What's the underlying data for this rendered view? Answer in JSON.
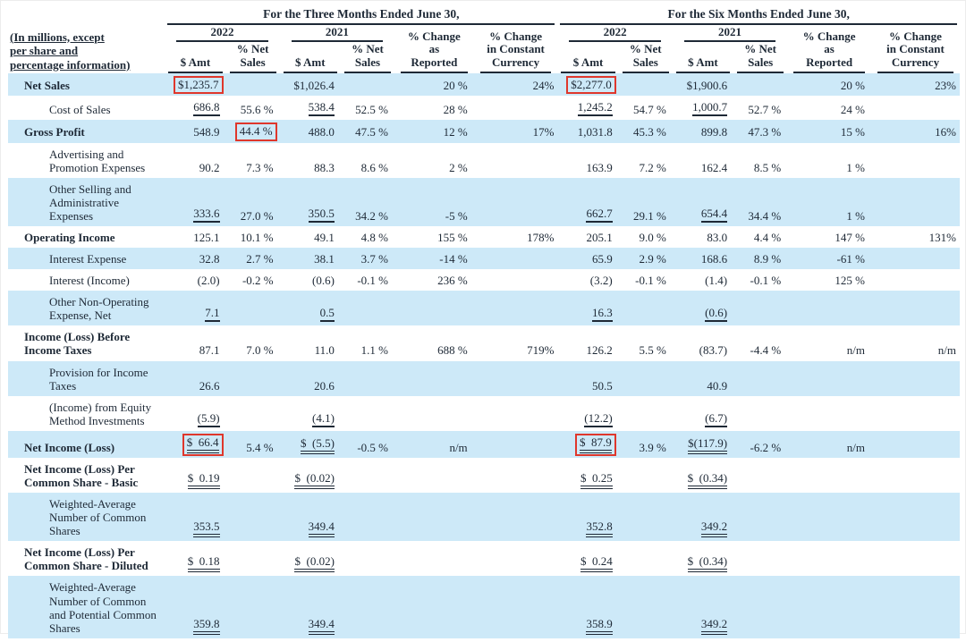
{
  "header": {
    "note": "(In millions, except\nper share and\npercentage information)",
    "three_months_title": "For the Three Months Ended June 30,",
    "six_months_title": "For the Six Months Ended June 30,",
    "year_2022": "2022",
    "year_2021": "2021",
    "col_amt": "$ Amt",
    "col_pct_net_sales": "% Net\nSales",
    "pct_change_reported": "% Change\nas\nReported",
    "pct_change_constant": "% Change\nin Constant\nCurrency"
  },
  "colors": {
    "row_highlight": "#cde9f8",
    "annotation_box": "#df372c",
    "text": "#1e2936"
  },
  "rows": [
    {
      "label": "Net Sales",
      "bold": true,
      "indent": false,
      "shade": true,
      "cells": [
        {
          "v": "$1,235.7",
          "box": true
        },
        "",
        "$1,026.4",
        "",
        "20 %",
        "24%",
        {
          "v": "$2,277.0",
          "box": true
        },
        "",
        "$1,900.6",
        "",
        "20 %",
        "23%"
      ]
    },
    {
      "label": "Cost of Sales",
      "bold": false,
      "indent": true,
      "shade": false,
      "cells": [
        {
          "v": "686.8",
          "u": "s"
        },
        "55.6 %",
        {
          "v": "538.4",
          "u": "s"
        },
        "52.5 %",
        "28 %",
        "",
        {
          "v": "1,245.2",
          "u": "s"
        },
        "54.7 %",
        {
          "v": "1,000.7",
          "u": "s"
        },
        "52.7 %",
        "24 %",
        ""
      ]
    },
    {
      "label": "Gross Profit",
      "bold": true,
      "indent": false,
      "shade": true,
      "cells": [
        "548.9",
        {
          "v": "44.4 %",
          "box": true
        },
        "488.0",
        "47.5 %",
        "12 %",
        "17%",
        "1,031.8",
        "45.3 %",
        "899.8",
        "47.3 %",
        "15 %",
        "16%"
      ]
    },
    {
      "label": "Advertising and Promotion Expenses",
      "bold": false,
      "indent": true,
      "shade": false,
      "cells": [
        "90.2",
        "7.3 %",
        "88.3",
        "8.6 %",
        "2 %",
        "",
        "163.9",
        "7.2 %",
        "162.4",
        "8.5 %",
        "1 %",
        ""
      ]
    },
    {
      "label": "Other Selling and Administrative Expenses",
      "bold": false,
      "indent": true,
      "shade": true,
      "cells": [
        {
          "v": "333.6",
          "u": "s"
        },
        "27.0 %",
        {
          "v": "350.5",
          "u": "s"
        },
        "34.2 %",
        "-5 %",
        "",
        {
          "v": "662.7",
          "u": "s"
        },
        "29.1 %",
        {
          "v": "654.4",
          "u": "s"
        },
        "34.4 %",
        "1 %",
        ""
      ]
    },
    {
      "label": "Operating Income",
      "bold": true,
      "indent": false,
      "shade": false,
      "cells": [
        "125.1",
        "10.1 %",
        "49.1",
        "4.8 %",
        "155 %",
        "178%",
        "205.1",
        "9.0 %",
        "83.0",
        "4.4 %",
        "147 %",
        "131%"
      ]
    },
    {
      "label": "Interest Expense",
      "bold": false,
      "indent": true,
      "shade": true,
      "cells": [
        "32.8",
        "2.7 %",
        "38.1",
        "3.7 %",
        "-14 %",
        "",
        "65.9",
        "2.9 %",
        "168.6",
        "8.9 %",
        "-61 %",
        ""
      ]
    },
    {
      "label": "Interest (Income)",
      "bold": false,
      "indent": true,
      "shade": false,
      "cells": [
        "(2.0)",
        "-0.2 %",
        "(0.6)",
        "-0.1 %",
        "236 %",
        "",
        "(3.2)",
        "-0.1 %",
        "(1.4)",
        "-0.1 %",
        "125 %",
        ""
      ]
    },
    {
      "label": "Other Non-Operating Expense, Net",
      "bold": false,
      "indent": true,
      "shade": true,
      "cells": [
        {
          "v": "7.1",
          "u": "s"
        },
        "",
        {
          "v": "0.5",
          "u": "s"
        },
        "",
        "",
        "",
        {
          "v": "16.3",
          "u": "s"
        },
        "",
        {
          "v": "(0.6)",
          "u": "s"
        },
        "",
        "",
        ""
      ]
    },
    {
      "label": "Income (Loss) Before Income Taxes",
      "bold": true,
      "indent": false,
      "shade": false,
      "cells": [
        "87.1",
        "7.0 %",
        "11.0",
        "1.1 %",
        "688 %",
        "719%",
        "126.2",
        "5.5 %",
        "(83.7)",
        "-4.4 %",
        "n/m",
        "n/m"
      ]
    },
    {
      "label": "Provision for Income Taxes",
      "bold": false,
      "indent": true,
      "shade": true,
      "cells": [
        "26.6",
        "",
        "20.6",
        "",
        "",
        "",
        "50.5",
        "",
        "40.9",
        "",
        "",
        ""
      ]
    },
    {
      "label": "(Income) from Equity Method Investments",
      "bold": false,
      "indent": true,
      "shade": false,
      "cells": [
        {
          "v": "(5.9)",
          "u": "s"
        },
        "",
        {
          "v": "(4.1)",
          "u": "s"
        },
        "",
        "",
        "",
        {
          "v": "(12.2)",
          "u": "s"
        },
        "",
        {
          "v": "(6.7)",
          "u": "s"
        },
        "",
        "",
        ""
      ]
    },
    {
      "label": "Net Income (Loss)",
      "bold": true,
      "indent": false,
      "shade": true,
      "cells": [
        {
          "v": "$  66.4",
          "u": "d",
          "box": true
        },
        "5.4 %",
        {
          "v": "$  (5.5)",
          "u": "d"
        },
        "-0.5 %",
        "n/m",
        "",
        {
          "v": "$  87.9",
          "u": "d",
          "box": true
        },
        "3.9 %",
        {
          "v": "$(117.9)",
          "u": "d"
        },
        "-6.2 %",
        "n/m",
        ""
      ]
    },
    {
      "label": "Net Income (Loss) Per Common Share - Basic",
      "bold": true,
      "indent": false,
      "shade": false,
      "cells": [
        {
          "v": "$  0.19",
          "u": "d"
        },
        "",
        {
          "v": "$  (0.02)",
          "u": "d"
        },
        "",
        "",
        "",
        {
          "v": "$  0.25",
          "u": "d"
        },
        "",
        {
          "v": "$  (0.34)",
          "u": "d"
        },
        "",
        "",
        ""
      ]
    },
    {
      "label": "Weighted-Average Number of Common Shares",
      "bold": false,
      "indent": true,
      "shade": true,
      "cells": [
        {
          "v": "353.5",
          "u": "d"
        },
        "",
        {
          "v": "349.4",
          "u": "d"
        },
        "",
        "",
        "",
        {
          "v": "352.8",
          "u": "d"
        },
        "",
        {
          "v": "349.2",
          "u": "d"
        },
        "",
        "",
        ""
      ]
    },
    {
      "label": "Net Income (Loss) Per Common Share - Diluted",
      "bold": true,
      "indent": false,
      "shade": false,
      "cells": [
        {
          "v": "$  0.18",
          "u": "d"
        },
        "",
        {
          "v": "$  (0.02)",
          "u": "d"
        },
        "",
        "",
        "",
        {
          "v": "$  0.24",
          "u": "d"
        },
        "",
        {
          "v": "$  (0.34)",
          "u": "d"
        },
        "",
        "",
        ""
      ]
    },
    {
      "label": "Weighted-Average Number of Common and Potential Common Shares",
      "bold": false,
      "indent": true,
      "shade": true,
      "cells": [
        {
          "v": "359.8",
          "u": "d"
        },
        "",
        {
          "v": "349.4",
          "u": "d"
        },
        "",
        "",
        "",
        {
          "v": "358.9",
          "u": "d"
        },
        "",
        {
          "v": "349.2",
          "u": "d"
        },
        "",
        "",
        ""
      ]
    }
  ]
}
